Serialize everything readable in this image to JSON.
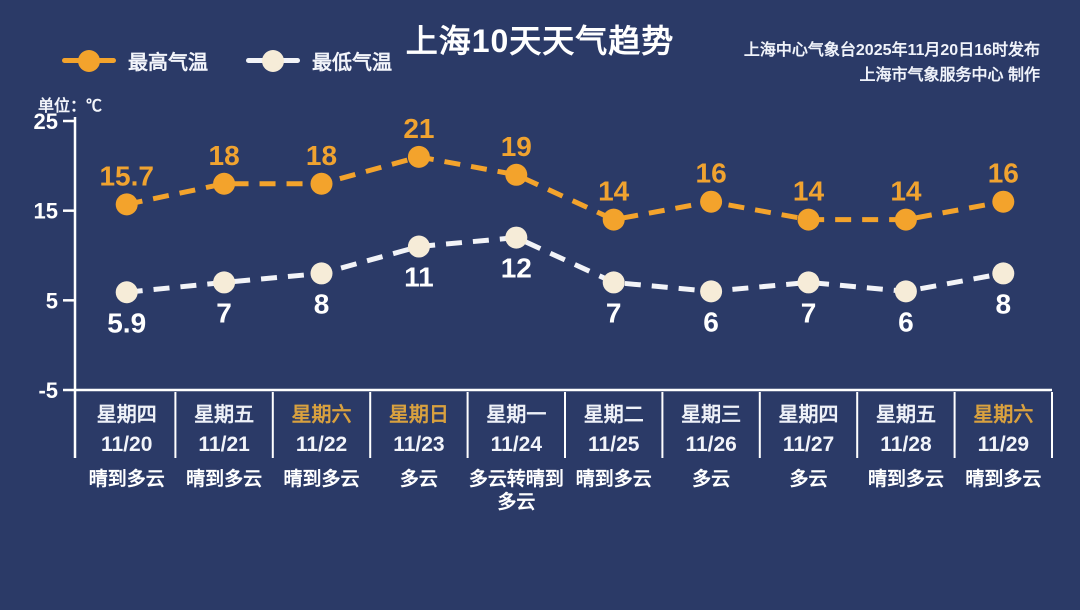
{
  "header": {
    "title": "上海10天天气趋势",
    "source_line1": "上海中心气象台2025年11月20日16时发布",
    "source_line2": "上海市气象服务中心  制作",
    "unit_label": "单位：℃"
  },
  "legend": {
    "high": {
      "label": "最高气温",
      "color": "#f3a32c"
    },
    "low": {
      "label": "最低气温",
      "color": "#f6ecd8"
    }
  },
  "colors": {
    "background": "#2b3a67",
    "axis": "#ffffff",
    "tick_label": "#ffffff",
    "high_series": "#f3a32c",
    "high_value_label": "#f0a330",
    "low_series_line": "#f2f3f7",
    "low_series_dot": "#f6ecd8",
    "low_value_label": "#ffffff",
    "weekend_label": "#d9a13f",
    "weekday_label": "#eef1f8"
  },
  "chart_data": {
    "type": "line",
    "title": "上海10天天气趋势",
    "ylabel": "单位：℃",
    "ylim": [
      -5,
      25
    ],
    "yticks": [
      25,
      15,
      5,
      -5
    ],
    "grid": false,
    "legend_position": "top-left",
    "categories": [
      "11/20",
      "11/21",
      "11/22",
      "11/23",
      "11/24",
      "11/25",
      "11/26",
      "11/27",
      "11/28",
      "11/29"
    ],
    "series": [
      {
        "name": "最高气温",
        "label_position": "above",
        "values": [
          15.7,
          18,
          18,
          21,
          19,
          14,
          16,
          14,
          14,
          16
        ]
      },
      {
        "name": "最低气温",
        "label_position": "below",
        "values": [
          5.9,
          7,
          8,
          11,
          12,
          7,
          6,
          7,
          6,
          8
        ]
      }
    ]
  },
  "days": [
    {
      "weekday": "星期四",
      "date": "11/20",
      "weather": "晴到多云",
      "weekend": false
    },
    {
      "weekday": "星期五",
      "date": "11/21",
      "weather": "晴到多云",
      "weekend": false
    },
    {
      "weekday": "星期六",
      "date": "11/22",
      "weather": "晴到多云",
      "weekend": true
    },
    {
      "weekday": "星期日",
      "date": "11/23",
      "weather": "多云",
      "weekend": true
    },
    {
      "weekday": "星期一",
      "date": "11/24",
      "weather": "多云转晴到多云",
      "weekend": false
    },
    {
      "weekday": "星期二",
      "date": "11/25",
      "weather": "晴到多云",
      "weekend": false
    },
    {
      "weekday": "星期三",
      "date": "11/26",
      "weather": "多云",
      "weekend": false
    },
    {
      "weekday": "星期四",
      "date": "11/27",
      "weather": "多云",
      "weekend": false
    },
    {
      "weekday": "星期五",
      "date": "11/28",
      "weather": "晴到多云",
      "weekend": false
    },
    {
      "weekday": "星期六",
      "date": "11/29",
      "weather": "晴到多云",
      "weekend": true
    }
  ]
}
